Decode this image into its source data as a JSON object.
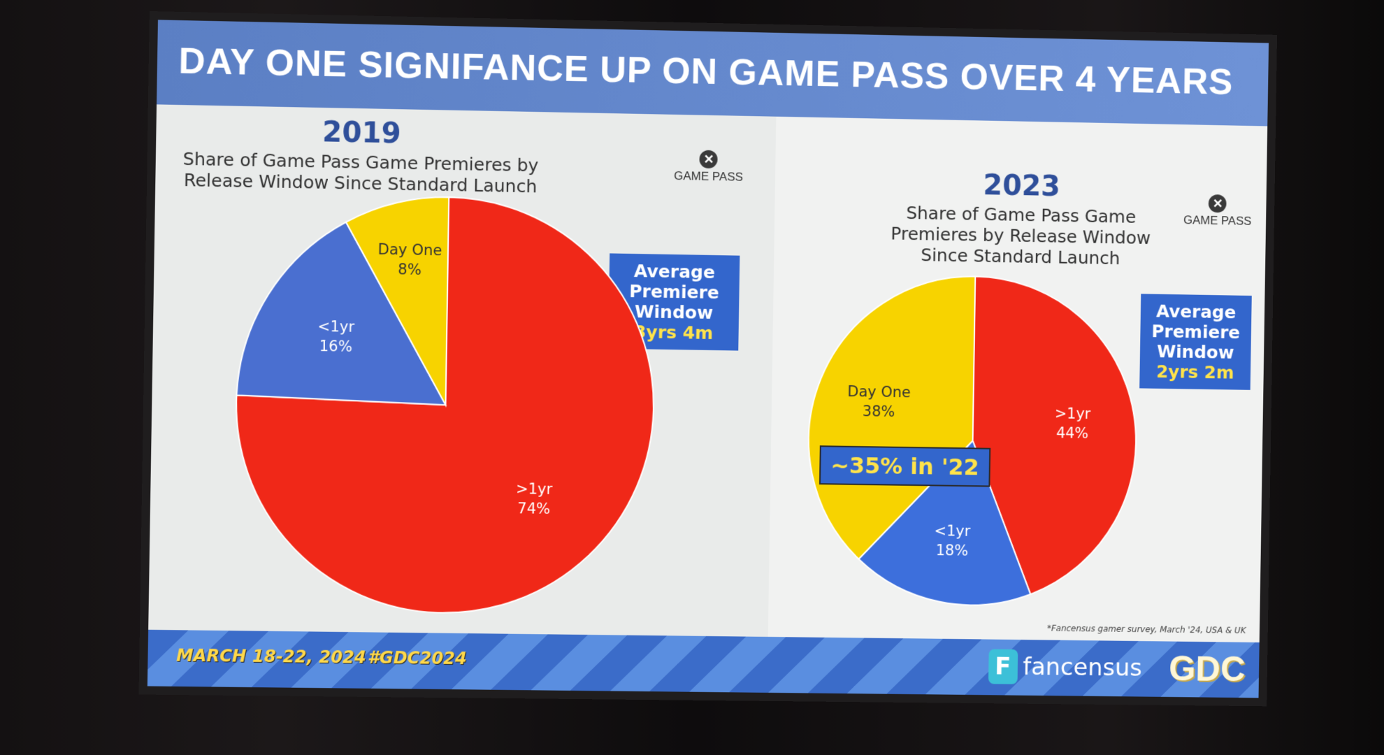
{
  "title": "DAY ONE SIGNIFANCE UP ON GAME PASS OVER 4 YEARS",
  "logo_text": "GAME PASS",
  "chart_data": [
    {
      "type": "pie",
      "year": "2019",
      "title": "Share of Game Pass Game Premieres by Release Window Since Standard Launch",
      "slices": [
        {
          "label": ">1yr",
          "value": 74,
          "display": "74%",
          "color": "#f02818"
        },
        {
          "label": "<1yr",
          "value": 16,
          "display": "16%",
          "color": "#4a6fd0"
        },
        {
          "label": "Day One",
          "value": 8,
          "display": "8%",
          "color": "#f7d300"
        }
      ],
      "avg_label": "Average Premiere Window",
      "avg_value": "3yrs 4m"
    },
    {
      "type": "pie",
      "year": "2023",
      "title": "Share of Game Pass Game Premieres by Release Window Since Standard Launch",
      "slices": [
        {
          "label": ">1yr",
          "value": 44,
          "display": "44%",
          "color": "#f02818"
        },
        {
          "label": "<1yr",
          "value": 18,
          "display": "18%",
          "color": "#3d6fdc"
        },
        {
          "label": "Day One",
          "value": 38,
          "display": "38%",
          "color": "#f7d300"
        }
      ],
      "avg_label": "Average Premiere Window",
      "avg_value": "2yrs 2m",
      "annotation": "~35% in '22"
    }
  ],
  "footnote": "*Fancensus gamer survey, March '24, USA & UK",
  "footer": {
    "dates": "MARCH 18-22, 2024",
    "hashtag": "#GDC2024",
    "brand": "fancensus",
    "brand_icon": "F",
    "event": "GDC"
  }
}
